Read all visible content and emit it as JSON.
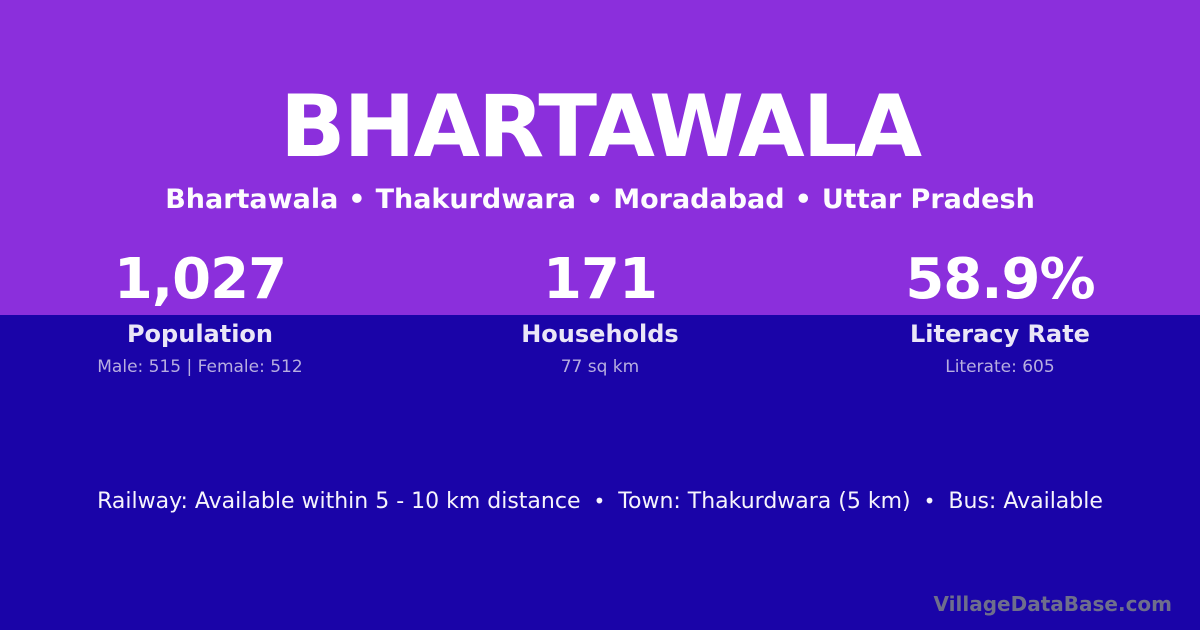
{
  "colors": {
    "header_purple": "#8B2FDC",
    "body_blue": "#1A04A8",
    "title_text": "#FFFFFF",
    "label_text": "#EAE6F7",
    "detail_text": "#B7AEE0",
    "watermark_text": "#6E6E8C"
  },
  "header": {
    "title": "BHARTAWALA",
    "breadcrumb": {
      "separator": "•",
      "items": [
        "Bhartawala",
        "Thakurdwara",
        "Moradabad",
        "Uttar Pradesh"
      ]
    }
  },
  "stats": [
    {
      "value": "1,027",
      "label": "Population",
      "detail": "Male: 515 | Female: 512"
    },
    {
      "value": "171",
      "label": "Households",
      "detail": "77 sq km"
    },
    {
      "value": "58.9%",
      "label": "Literacy Rate",
      "detail": "Literate: 605"
    }
  ],
  "footer": {
    "separator": "•",
    "items": [
      "Railway: Available within 5 - 10 km distance",
      "Town: Thakurdwara (5 km)",
      "Bus: Available"
    ]
  },
  "watermark": "VillageDataBase.com"
}
